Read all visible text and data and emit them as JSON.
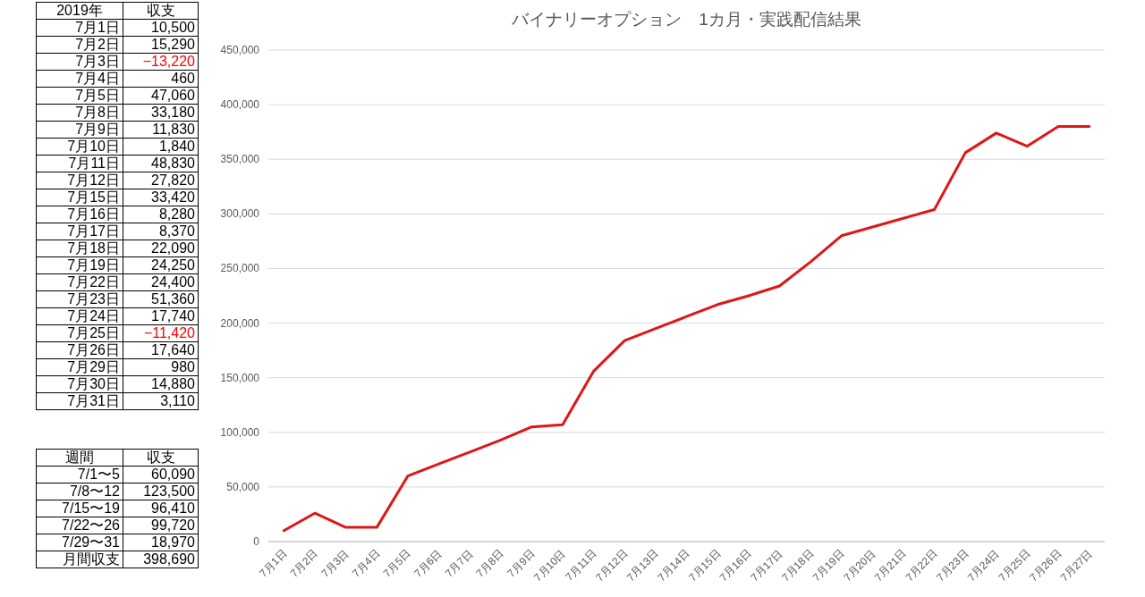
{
  "chart_data": [
    {
      "type": "other",
      "annotations": [
        "2019年",
        "収支"
      ],
      "categories": [
        "7月1日",
        "7月2日",
        "7月3日",
        "7月4日",
        "7月5日",
        "7月8日",
        "7月9日",
        "7月10日",
        "7月11日",
        "7月12日",
        "7月15日",
        "7月16日",
        "7月17日",
        "7月18日",
        "7月19日",
        "7月22日",
        "7月23日",
        "7月24日",
        "7月25日",
        "7月26日",
        "7月29日",
        "7月30日",
        "7月31日"
      ],
      "value_labels": [
        "10,500",
        "15,290",
        "−13,220",
        "460",
        "47,060",
        "33,180",
        "11,830",
        "1,840",
        "48,830",
        "27,820",
        "33,420",
        "8,280",
        "8,370",
        "22,090",
        "24,250",
        "24,400",
        "51,360",
        "17,740",
        "−11,420",
        "17,640",
        "980",
        "14,880",
        "3,110"
      ],
      "colors": [
        "#000000",
        "#000000",
        "#ff0000",
        "#000000",
        "#000000",
        "#000000",
        "#000000",
        "#000000",
        "#000000",
        "#000000",
        "#000000",
        "#000000",
        "#000000",
        "#000000",
        "#000000",
        "#000000",
        "#000000",
        "#000000",
        "#ff0000",
        "#000000",
        "#000000",
        "#000000",
        "#000000"
      ]
    },
    {
      "type": "other",
      "annotations": [
        "週間",
        "収支"
      ],
      "categories": [
        "7/1〜5",
        "7/8〜12",
        "7/15〜19",
        "7/22〜26",
        "7/29〜31",
        "月間収支"
      ],
      "value_labels": [
        "60,090",
        "123,500",
        "96,410",
        "99,720",
        "18,970",
        "398,690"
      ],
      "colors": [
        "#000000",
        "#000000",
        "#000000",
        "#000000",
        "#000000",
        "#000000"
      ]
    },
    {
      "type": "line",
      "title": "バイナリーオプション　1カ月・実践配信結果",
      "categories": [
        "7月1日",
        "7月2日",
        "7月3日",
        "7月4日",
        "7月5日",
        "7月6日",
        "7月7日",
        "7月8日",
        "7月9日",
        "7月10日",
        "7月11日",
        "7月12日",
        "7月13日",
        "7月14日",
        "7月15日",
        "7月16日",
        "7月17日",
        "7月18日",
        "7月19日",
        "7月20日",
        "7月21日",
        "7月22日",
        "7月23日",
        "7月24日",
        "7月25日",
        "7月26日",
        "7月27日"
      ],
      "series": [
        {
          "color": "#e01616",
          "values": [
            10000,
            26000,
            13000,
            13000,
            60000,
            71000,
            82000,
            93000,
            105000,
            107000,
            156000,
            184000,
            195000,
            206000,
            217000,
            225000,
            234000,
            256000,
            280000,
            288000,
            296000,
            304000,
            356000,
            374000,
            362000,
            380000,
            380000
          ]
        }
      ],
      "ylim": [
        0,
        450000
      ],
      "yticks": [
        0,
        {
          "value": 50000,
          "label": "50,000"
        },
        {
          "value": 100000,
          "label": "100,000"
        },
        {
          "value": 150000,
          "label": "150,000"
        },
        {
          "value": 200000,
          "label": "200,000"
        },
        {
          "value": 250000,
          "label": "250,000"
        },
        {
          "value": 300000,
          "label": "300,000"
        },
        {
          "value": 350000,
          "label": "350,000"
        },
        {
          "value": 400000,
          "label": "400,000"
        },
        {
          "value": 450000,
          "label": "450,000"
        }
      ],
      "grid": "y",
      "marker": "none",
      "line_style": "solid"
    }
  ]
}
